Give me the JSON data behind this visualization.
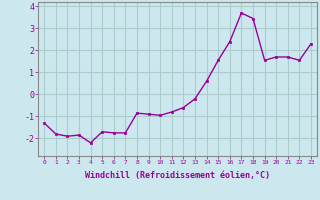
{
  "x": [
    0,
    1,
    2,
    3,
    4,
    5,
    6,
    7,
    8,
    9,
    10,
    11,
    12,
    13,
    14,
    15,
    16,
    17,
    18,
    19,
    20,
    21,
    22,
    23
  ],
  "y": [
    -1.3,
    -1.8,
    -1.9,
    -1.85,
    -2.2,
    -1.7,
    -1.75,
    -1.75,
    -0.85,
    -0.9,
    -0.95,
    -0.8,
    -0.6,
    -0.2,
    0.6,
    1.55,
    2.4,
    3.7,
    3.45,
    1.55,
    1.7,
    1.7,
    1.55,
    2.3
  ],
  "line_color": "#990099",
  "marker": "s",
  "marker_size": 2.0,
  "bg_color": "#cce8ee",
  "grid_color": "#aacccc",
  "xlabel": "Windchill (Refroidissement éolien,°C)",
  "xlabel_color": "#990099",
  "tick_color": "#990099",
  "ylim": [
    -2.8,
    4.2
  ],
  "xlim": [
    -0.5,
    23.5
  ],
  "yticks": [
    -2,
    -1,
    0,
    1,
    2,
    3,
    4
  ],
  "xticks": [
    0,
    1,
    2,
    3,
    4,
    5,
    6,
    7,
    8,
    9,
    10,
    11,
    12,
    13,
    14,
    15,
    16,
    17,
    18,
    19,
    20,
    21,
    22,
    23
  ],
  "xtick_labels": [
    "0",
    "1",
    "2",
    "3",
    "4",
    "5",
    "6",
    "7",
    "8",
    "9",
    "10",
    "11",
    "12",
    "13",
    "14",
    "15",
    "16",
    "17",
    "18",
    "19",
    "20",
    "21",
    "22",
    "23"
  ],
  "spine_color": "#888888",
  "line_width": 1.0
}
